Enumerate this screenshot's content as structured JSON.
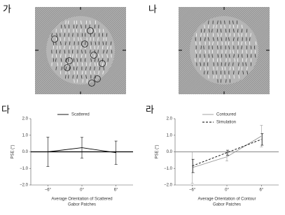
{
  "panels": [
    {
      "label": "가"
    },
    {
      "label": "나"
    }
  ],
  "chart_data": [
    {
      "type": "line",
      "label": "다",
      "ylabel": "PSE (°)",
      "xlabel": [
        "Average Orientation of Scattered",
        "Gabor Patches"
      ],
      "categories": [
        "−6°",
        "0°",
        "6°"
      ],
      "ylim": [
        -2,
        2
      ],
      "yticks": [
        {
          "value": 2,
          "label": "2.0"
        },
        {
          "value": 1,
          "label": "1.0"
        },
        {
          "value": 0,
          "label": "0.0"
        },
        {
          "value": -1,
          "label": "−1.0"
        },
        {
          "value": -2,
          "label": "−2.0"
        }
      ],
      "reference_line": 0,
      "reference_color": "#000000",
      "legend": "top",
      "series": [
        {
          "name": "Scattered",
          "color": "#000000",
          "linestyle": "solid",
          "values": [
            0.0,
            0.25,
            -0.05
          ],
          "errors": [
            0.88,
            0.62,
            0.7
          ]
        }
      ]
    },
    {
      "type": "line",
      "label": "라",
      "ylabel": "PSE (°)",
      "xlabel": [
        "Average Orientation of Contour",
        "Gabor Patches"
      ],
      "categories": [
        "−6°",
        "0°",
        "6°"
      ],
      "ylim": [
        -2,
        2
      ],
      "yticks": [
        {
          "value": 2,
          "label": "2.0"
        },
        {
          "value": 1,
          "label": "1.0"
        },
        {
          "value": 0,
          "label": "0.0"
        },
        {
          "value": -1,
          "label": "−1.0"
        },
        {
          "value": -2,
          "label": "−2.0"
        }
      ],
      "reference_line": 0,
      "reference_color": "#999999",
      "legend": "top",
      "series": [
        {
          "name": "Contoured",
          "color": "#999999",
          "linestyle": "solid",
          "values": [
            -0.95,
            -0.3,
            0.95
          ],
          "errors": [
            0.95,
            0.25,
            0.65
          ]
        },
        {
          "name": "Simulation",
          "color": "#000000",
          "linestyle": "dashed",
          "values": [
            -0.85,
            -0.05,
            0.75
          ],
          "errors": [
            0.4,
            0.15,
            0.35
          ]
        }
      ]
    }
  ]
}
